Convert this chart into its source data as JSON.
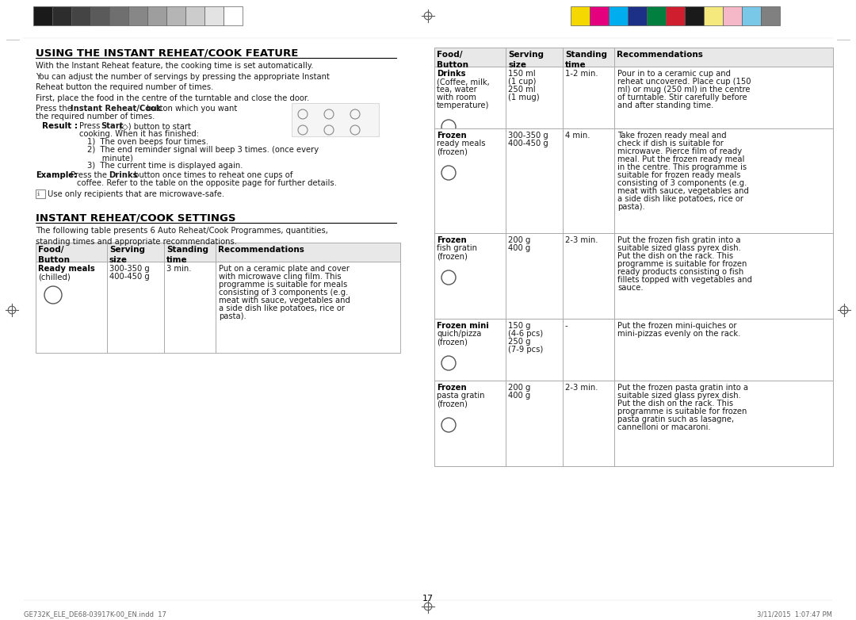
{
  "page_bg": "#ffffff",
  "page_number": "17",
  "footer_left": "GE732K_ELE_DE68-03917K-00_EN.indd  17",
  "footer_right": "3/11/2015  1:07:47 PM",
  "left_title": "USING THE INSTANT REHEAT/COOK FEATURE",
  "left_intro": "With the Instant Reheat feature, the cooking time is set automatically.\nYou can adjust the number of servings by pressing the appropriate Instant\nReheat button the required number of times.\nFirst, place the food in the centre of the turntable and close the door.",
  "press_text": "Press the Instant Reheat/Cook button which you want\nthe required number of times.",
  "result_label": "Result :",
  "result_text": "Press Start (◇) button to start\ncooking. When it has finished:\n   1)  The oven beeps four times.\n   2)  The end reminder signal will beep 3 times. (once every\n         minute)\n   3)  The current time is displayed again.",
  "example_text": "Example: Press the Drinks button once times to reheat one cups of\n              coffee. Refer to the table on the opposite page for further details.",
  "note_text": "Use only recipients that are microwave-safe.",
  "section2_title": "INSTANT REHEAT/COOK SETTINGS",
  "section2_intro": "The following table presents 6 Auto Reheat/Cook Programmes, quantities,\nstanding times and appropriate recommendations.",
  "left_table_header": [
    "Food/\nButton",
    "Serving\nsize",
    "Standing\ntime",
    "Recommendations"
  ],
  "left_table_rows": [
    {
      "food": "Ready meals\n(chilled)\n\n[icon]",
      "serving": "300-350 g\n400-450 g",
      "standing": "3 min.",
      "rec": "Put on a ceramic plate and cover\nwith microwave cling film. This\nprogramme is suitable for meals\nconsisting of 3 components (e.g.\nmeat with sauce, vegetables and\na side dish like potatoes, rice or\npasta)."
    }
  ],
  "right_table_header": [
    "Food/\nButton",
    "Serving\nsize",
    "Standing\ntime",
    "Recommendations"
  ],
  "right_table_rows": [
    {
      "food": "Drinks\n(Coffee, milk,\ntea, water\nwith room\ntemperature)\n\n[icon]",
      "serving": "150 ml\n(1 cup)\n250 ml\n(1 mug)",
      "standing": "1-2 min.",
      "rec": "Pour in to a ceramic cup and\nreheat uncovered. Place cup (150\nml) or mug (250 ml) in the centre\nof turntable. Stir carefully before\nand after standing time."
    },
    {
      "food": "Frozen\nready meals\n(frozen)\n\n[icon]",
      "serving": "300-350 g\n400-450 g",
      "standing": "4 min.",
      "rec": "Take frozen ready meal and\ncheck if dish is suitable for\nmicrowave. Pierce film of ready\nmeal. Put the frozen ready meal\nin the centre. This programme is\nsuitable for frozen ready meals\nconsisting of 3 components (e.g.\nmeat with sauce, vegetables and\na side dish like potatoes, rice or\npasta)."
    },
    {
      "food": "Frozen\nfish gratin\n(frozen)\n\n[icon]",
      "serving": "200 g\n400 g",
      "standing": "2-3 min.",
      "rec": "Put the frozen fish gratin into a\nsuitable sized glass pyrex dish.\nPut the dish on the rack. This\nprogramme is suitable for frozen\nready products consisting o fish\nfillets topped with vegetables and\nsauce."
    },
    {
      "food": "Frozen mini\nquich/pizza\n(frozen)\n\n[icon]",
      "serving": "150 g\n(4-6 pcs)\n250 g\n(7-9 pcs)",
      "standing": "-",
      "rec": "Put the frozen mini-quiches or\nmini-pizzas evenly on the rack."
    },
    {
      "food": "Frozen\npasta gratin\n(frozen)\n\n[icon]",
      "serving": "200 g\n400 g",
      "standing": "2-3 min.",
      "rec": "Put the frozen pasta gratin into a\nsuitable sized glass pyrex dish.\nPut the dish on the rack. This\nprogramme is suitable for frozen\npasta gratin such as lasagne,\ncannelloni or macaroni."
    }
  ],
  "grayscale_swatches": [
    "#1a1a1a",
    "#2d2d2d",
    "#444444",
    "#5a5a5a",
    "#6f6f6f",
    "#878787",
    "#9e9e9e",
    "#b5b5b5",
    "#cccccc",
    "#e3e3e3",
    "#ffffff"
  ],
  "color_swatches": [
    "#f5d800",
    "#e5007e",
    "#00aeef",
    "#1d3087",
    "#007f3e",
    "#cf1f2e",
    "#1a1a1a",
    "#f5e87c",
    "#f4b8c8",
    "#79c8e8",
    "#808080"
  ],
  "swatch_border": "#5a5a5a",
  "crosshair_color": "#5a5a5a",
  "border_color": "#cccccc",
  "table_header_bg": "#e8e8e8",
  "table_border": "#aaaaaa",
  "bold_header_color": "#000000",
  "text_color": "#1a1a1a",
  "title_underline": true
}
